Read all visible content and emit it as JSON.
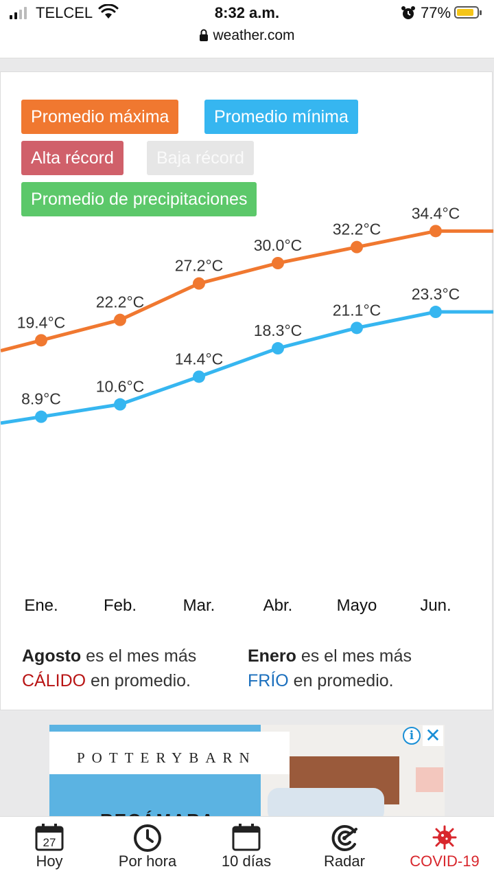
{
  "status_bar": {
    "carrier": "TELCEL",
    "time": "8:32 a.m.",
    "url": "weather.com",
    "battery_percent": "77%"
  },
  "legend": {
    "max": "Promedio máxima",
    "min": "Promedio mínima",
    "alta": "Alta récord",
    "baja": "Baja récord",
    "precip": "Promedio de precipitaciones"
  },
  "colors": {
    "max": "#f07830",
    "min": "#36b6f0",
    "alta": "#d0606a",
    "precip": "#5cc86a"
  },
  "chart_data": {
    "type": "line",
    "categories": [
      "Ene.",
      "Feb.",
      "Mar.",
      "Abr.",
      "Mayo",
      "Jun."
    ],
    "series": [
      {
        "name": "Promedio máxima",
        "values": [
          19.4,
          22.2,
          27.2,
          30.0,
          32.2,
          34.4
        ],
        "labels": [
          "19.4°C",
          "22.2°C",
          "27.2°C",
          "30.0°C",
          "32.2°C",
          "34.4°C"
        ]
      },
      {
        "name": "Promedio mínima",
        "values": [
          8.9,
          10.6,
          14.4,
          18.3,
          21.1,
          23.3
        ],
        "labels": [
          "8.9°C",
          "10.6°C",
          "14.4°C",
          "18.3°C",
          "21.1°C",
          "23.3°C"
        ]
      }
    ]
  },
  "summary": {
    "hot_month": "Agosto",
    "hot_text1": "es el mes más",
    "hot_word": "CÁLIDO",
    "hot_text2": "en promedio.",
    "cold_month": "Enero",
    "cold_text1": "es el mes más",
    "cold_word": "FRÍO",
    "cold_text2": "en promedio."
  },
  "ad": {
    "brand": "POTTERYBARN",
    "cta": "RECÁMARA"
  },
  "bottom_nav": {
    "today_day": "27",
    "items": [
      {
        "label": "Hoy"
      },
      {
        "label": "Por hora"
      },
      {
        "label": "10 días"
      },
      {
        "label": "Radar"
      },
      {
        "label": "COVID-19"
      }
    ]
  }
}
